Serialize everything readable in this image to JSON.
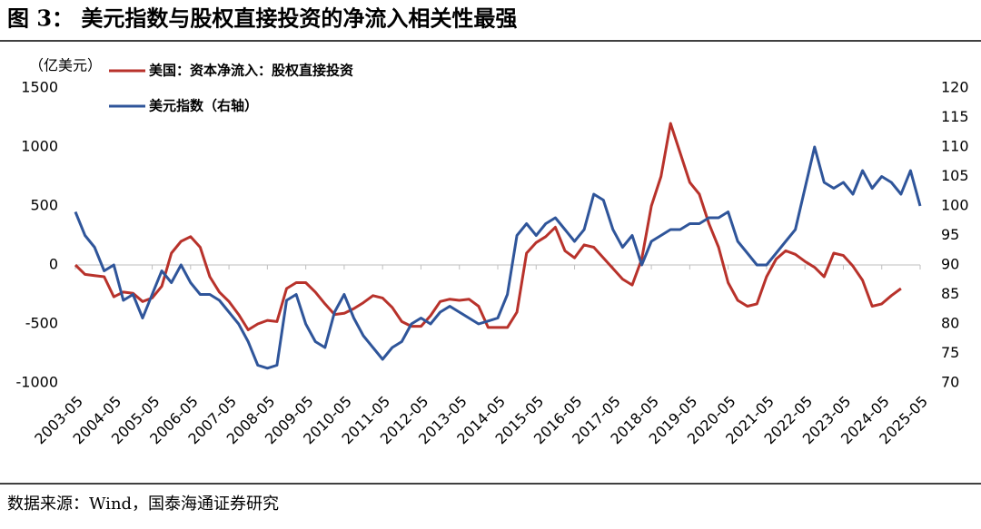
{
  "chart_data": {
    "type": "line",
    "title": "图 3：  美元指数与股权直接投资的净流入相关性最强",
    "y_label": "（亿美元）",
    "source": "数据来源：Wind，国泰海通证券研究",
    "categories": [
      "2003-05",
      null,
      null,
      null,
      "2004-05",
      null,
      null,
      null,
      "2005-05",
      null,
      null,
      null,
      "2006-05",
      null,
      null,
      null,
      "2007-05",
      null,
      null,
      null,
      "2008-05",
      null,
      null,
      null,
      "2009-05",
      null,
      null,
      null,
      "2010-05",
      null,
      null,
      null,
      "2011-05",
      null,
      null,
      null,
      "2012-05",
      null,
      null,
      null,
      "2013-05",
      null,
      null,
      null,
      "2014-05",
      null,
      null,
      null,
      "2015-05",
      null,
      null,
      null,
      "2016-05",
      null,
      null,
      null,
      "2017-05",
      null,
      null,
      null,
      "2018-05",
      null,
      null,
      null,
      "2019-05",
      null,
      null,
      null,
      "2020-05",
      null,
      null,
      null,
      "2021-05",
      null,
      null,
      null,
      "2022-05",
      null,
      null,
      null,
      "2023-05",
      null,
      null,
      null,
      "2024-05",
      null,
      null,
      null,
      "2025-05"
    ],
    "series": [
      {
        "name": "美国：资本净流入：股权直接投资",
        "color": "#b8322b",
        "axis": "y",
        "values": [
          0,
          -80,
          -90,
          -100,
          -270,
          -230,
          -240,
          -310,
          -280,
          -180,
          100,
          200,
          240,
          150,
          -100,
          -230,
          -310,
          -420,
          -550,
          -500,
          -470,
          -480,
          -200,
          -150,
          -150,
          -230,
          -330,
          -420,
          -410,
          -370,
          -320,
          -260,
          -280,
          -360,
          -480,
          -520,
          -520,
          -430,
          -310,
          -290,
          -300,
          -290,
          -350,
          -530,
          -530,
          -530,
          -400,
          100,
          190,
          240,
          320,
          120,
          60,
          170,
          150,
          60,
          -30,
          -120,
          -170,
          50,
          500,
          750,
          1200,
          950,
          700,
          600,
          350,
          150,
          -150,
          -300,
          -350,
          -330,
          -100,
          50,
          120,
          90,
          30,
          -20,
          -100,
          100,
          80,
          -10,
          -130,
          -350,
          -330,
          -260,
          -200,
          null,
          null
        ]
      },
      {
        "name": "美元指数（右轴）",
        "color": "#2f559a",
        "axis": "y2",
        "values": [
          99,
          95,
          93,
          89,
          90,
          84,
          85,
          81,
          85,
          89,
          87,
          90,
          87,
          85,
          85,
          84,
          82,
          80,
          77,
          73,
          72.5,
          73,
          84,
          85,
          80,
          77,
          76,
          82,
          85,
          81,
          78,
          76,
          74,
          76,
          77,
          80,
          81,
          80,
          82,
          83,
          82,
          81,
          80,
          80.5,
          81,
          85,
          95,
          97,
          95,
          97,
          98,
          96,
          94,
          96,
          102,
          101,
          96,
          93,
          95,
          90,
          94,
          95,
          96,
          96,
          97,
          97,
          98,
          98,
          99,
          94,
          92,
          90,
          90,
          92,
          94,
          96,
          103,
          110,
          104,
          103,
          104,
          102,
          106,
          103,
          105,
          104,
          102,
          106,
          100
        ]
      }
    ],
    "ylim": [
      -1000,
      1500
    ],
    "yticks": [
      1500,
      1000,
      500,
      0,
      -500,
      -1000
    ],
    "y2lim": [
      70,
      120
    ],
    "y2ticks": [
      120,
      115,
      110,
      105,
      100,
      95,
      90,
      85,
      80,
      75,
      70
    ]
  }
}
